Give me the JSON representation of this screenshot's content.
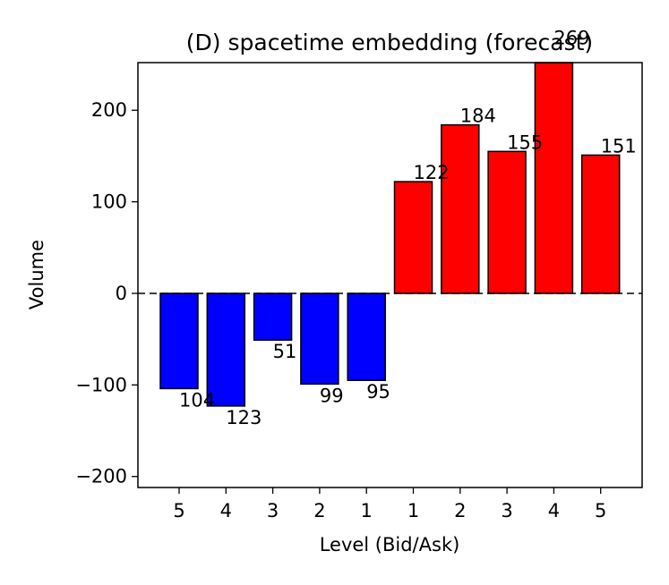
{
  "chart_data": {
    "type": "bar",
    "title": "(D) spacetime embedding (forecast)",
    "xlabel": "Level (Bid/Ask)",
    "ylabel": "Volume",
    "categories": [
      "5",
      "4",
      "3",
      "2",
      "1",
      "1",
      "2",
      "3",
      "4",
      "5"
    ],
    "values": [
      -104,
      -123,
      -51,
      -99,
      -95,
      122,
      184,
      155,
      269,
      151
    ],
    "bar_labels": [
      "104",
      "123",
      "51",
      "99",
      "95",
      "122",
      "184",
      "155",
      "269",
      "151"
    ],
    "bar_colors": [
      "#0000ff",
      "#0000ff",
      "#0000ff",
      "#0000ff",
      "#0000ff",
      "#ff0000",
      "#ff0000",
      "#ff0000",
      "#ff0000",
      "#ff0000"
    ],
    "ylim": [
      -212,
      252
    ],
    "yticks": [
      200,
      100,
      0,
      -100,
      -200
    ],
    "ytick_labels": [
      "200",
      "100",
      "0",
      "−100",
      "−200"
    ],
    "zero_line": "dashed",
    "grid": false,
    "legend": "none"
  }
}
